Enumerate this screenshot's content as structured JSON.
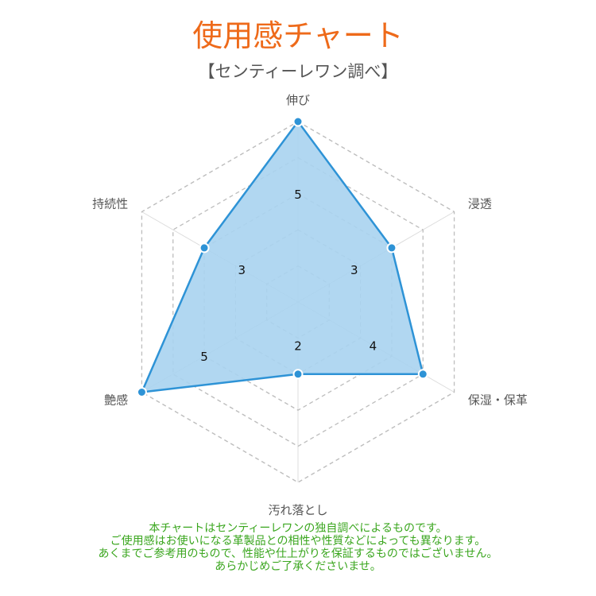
{
  "chart_data": {
    "type": "radar",
    "title": "使用感チャート",
    "subtitle": "【センティーレワン調べ】",
    "categories": [
      "伸び",
      "浸透",
      "保湿・保革",
      "汚れ落とし",
      "艶感",
      "持続性"
    ],
    "values": [
      5,
      3,
      4,
      2,
      5,
      3
    ],
    "range": [
      0,
      5
    ],
    "grid": true,
    "colors": {
      "line": "#2e93d6",
      "fill": "#a9d3f0",
      "title": "#ee6a1a",
      "note": "#3aa61e"
    }
  },
  "notes": [
    "本チャートはセンティーレワンの独自調べによるものです。",
    "ご使用感はお使いになる革製品との相性や性質などによっても異なります。",
    "あくまでご参考用のもので、性能や仕上がりを保証するものではございません。",
    "あらかじめご了承くださいませ。"
  ]
}
